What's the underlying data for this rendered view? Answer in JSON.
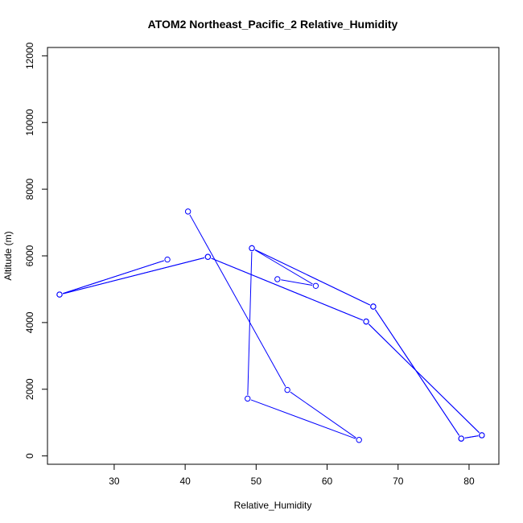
{
  "chart_data": {
    "type": "line",
    "title": "ATOM2 Northeast_Pacific_2 Relative_Humidity",
    "xlabel": "Relative_Humidity",
    "ylabel": "Altitude (m)",
    "xlim": [
      20.6,
      84.2
    ],
    "ylim": [
      -250,
      12250
    ],
    "xticks": [
      30,
      40,
      50,
      60,
      70,
      80
    ],
    "yticks": [
      0,
      2000,
      4000,
      6000,
      8000,
      10000,
      12000
    ],
    "grid": false,
    "legend": "none",
    "series": [
      {
        "color": "#0000ff",
        "marker": "open-circle",
        "points": [
          [
            53.0,
            5300
          ],
          [
            58.4,
            5100
          ],
          [
            49.4,
            6230
          ],
          [
            66.5,
            4480
          ],
          [
            78.9,
            520
          ],
          [
            81.8,
            620
          ],
          [
            65.5,
            4030
          ],
          [
            43.2,
            5970
          ],
          [
            22.3,
            4840
          ],
          [
            37.5,
            5890
          ],
          [
            22.3,
            4840
          ],
          [
            43.2,
            5970
          ],
          [
            65.5,
            4030
          ],
          [
            81.8,
            620
          ],
          [
            78.9,
            520
          ],
          [
            66.5,
            4480
          ],
          [
            49.4,
            6230
          ],
          [
            48.8,
            1720
          ],
          [
            64.5,
            480
          ],
          [
            54.4,
            1980
          ],
          [
            40.4,
            7330
          ]
        ]
      }
    ]
  }
}
